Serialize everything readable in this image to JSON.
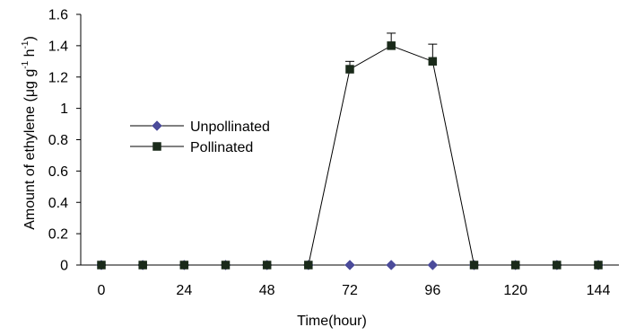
{
  "chart_data": {
    "type": "line",
    "title": "",
    "xlabel": "Time(hour)",
    "ylabel_parts": {
      "main": "Amount of ethylene (μg g",
      "sup1": "-1",
      "mid": " h",
      "sup2": "-1",
      "end": ")"
    },
    "x": [
      0,
      12,
      24,
      36,
      48,
      60,
      72,
      84,
      96,
      108,
      120,
      132,
      144
    ],
    "x_tick_labels": [
      "0",
      "24",
      "48",
      "72",
      "96",
      "120",
      "144"
    ],
    "x_tick_values": [
      0,
      24,
      48,
      72,
      96,
      120,
      144
    ],
    "y_tick_labels": [
      "0",
      "0.2",
      "0.4",
      "0.6",
      "0.8",
      "1",
      "1.2",
      "1.4",
      "1.6"
    ],
    "y_tick_values": [
      0,
      0.2,
      0.4,
      0.6,
      0.8,
      1.0,
      1.2,
      1.4,
      1.6
    ],
    "ylim": [
      0,
      1.6
    ],
    "grid": false,
    "legend_position": "center-left",
    "series": [
      {
        "name": "Unpollinated",
        "marker": "diamond",
        "color": "#4B4B9A",
        "values": [
          0,
          0,
          0,
          0,
          0,
          0,
          0,
          0,
          0,
          0,
          0,
          0,
          0
        ]
      },
      {
        "name": "Pollinated",
        "marker": "square",
        "color": "#1a2a1a",
        "values": [
          0,
          0,
          0,
          0,
          0,
          0,
          1.25,
          1.4,
          1.3,
          0,
          0,
          0,
          0
        ],
        "error_upper": [
          0,
          0,
          0,
          0,
          0,
          0,
          0.05,
          0.08,
          0.11,
          0,
          0,
          0,
          0
        ]
      }
    ]
  }
}
